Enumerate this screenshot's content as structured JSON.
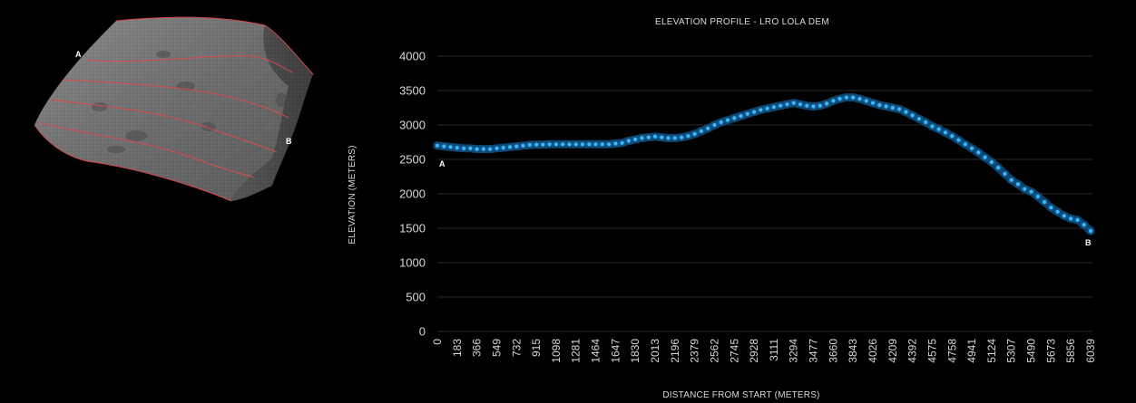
{
  "terrain": {
    "label_start": "A",
    "label_end": "B"
  },
  "chart_data": {
    "type": "line",
    "title": "ELEVATION PROFILE - LRO LOLA DEM",
    "xlabel": "DISTANCE FROM START (METERS)",
    "ylabel": "ELEVATION (METERS)",
    "ylim": [
      0,
      4000
    ],
    "yticks": [
      0,
      500,
      1000,
      1500,
      2000,
      2500,
      3000,
      3500,
      4000
    ],
    "grid": true,
    "line_color": "#39b8ff",
    "point_labels": {
      "start": "A",
      "end": "B"
    },
    "x": [
      0,
      61,
      122,
      183,
      244,
      305,
      366,
      427,
      488,
      549,
      610,
      671,
      732,
      793,
      854,
      915,
      976,
      1037,
      1098,
      1159,
      1220,
      1281,
      1342,
      1403,
      1464,
      1525,
      1586,
      1647,
      1708,
      1769,
      1830,
      1891,
      1952,
      2013,
      2074,
      2135,
      2196,
      2257,
      2318,
      2379,
      2440,
      2501,
      2562,
      2623,
      2684,
      2745,
      2806,
      2867,
      2928,
      2989,
      3050,
      3111,
      3172,
      3233,
      3294,
      3355,
      3416,
      3477,
      3538,
      3599,
      3660,
      3721,
      3782,
      3843,
      3904,
      3965,
      4026,
      4087,
      4148,
      4209,
      4270,
      4331,
      4392,
      4453,
      4514,
      4575,
      4636,
      4697,
      4758,
      4819,
      4880,
      4941,
      5002,
      5063,
      5124,
      5185,
      5246,
      5307,
      5368,
      5429,
      5490,
      5551,
      5612,
      5673,
      5734,
      5795,
      5856,
      5917,
      5978,
      6039
    ],
    "y": [
      2700,
      2690,
      2680,
      2670,
      2660,
      2660,
      2650,
      2650,
      2650,
      2660,
      2670,
      2680,
      2690,
      2700,
      2710,
      2715,
      2715,
      2720,
      2720,
      2720,
      2720,
      2720,
      2720,
      2720,
      2720,
      2720,
      2720,
      2730,
      2740,
      2770,
      2790,
      2810,
      2820,
      2830,
      2820,
      2810,
      2810,
      2820,
      2840,
      2870,
      2910,
      2950,
      3000,
      3040,
      3070,
      3100,
      3130,
      3160,
      3190,
      3220,
      3240,
      3260,
      3280,
      3300,
      3320,
      3300,
      3280,
      3270,
      3280,
      3310,
      3350,
      3380,
      3400,
      3400,
      3380,
      3350,
      3320,
      3290,
      3270,
      3250,
      3230,
      3190,
      3140,
      3090,
      3040,
      2980,
      2940,
      2890,
      2840,
      2780,
      2720,
      2660,
      2600,
      2530,
      2460,
      2380,
      2290,
      2200,
      2140,
      2070,
      2030,
      1960,
      1880,
      1800,
      1740,
      1680,
      1640,
      1620,
      1550,
      1460
    ],
    "xticks": [
      0,
      183,
      366,
      549,
      732,
      915,
      1098,
      1281,
      1464,
      1647,
      1830,
      2013,
      2196,
      2379,
      2562,
      2745,
      2928,
      3111,
      3294,
      3477,
      3660,
      3843,
      4026,
      4209,
      4392,
      4575,
      4758,
      4941,
      5124,
      5307,
      5490,
      5673,
      5856,
      6039
    ]
  }
}
